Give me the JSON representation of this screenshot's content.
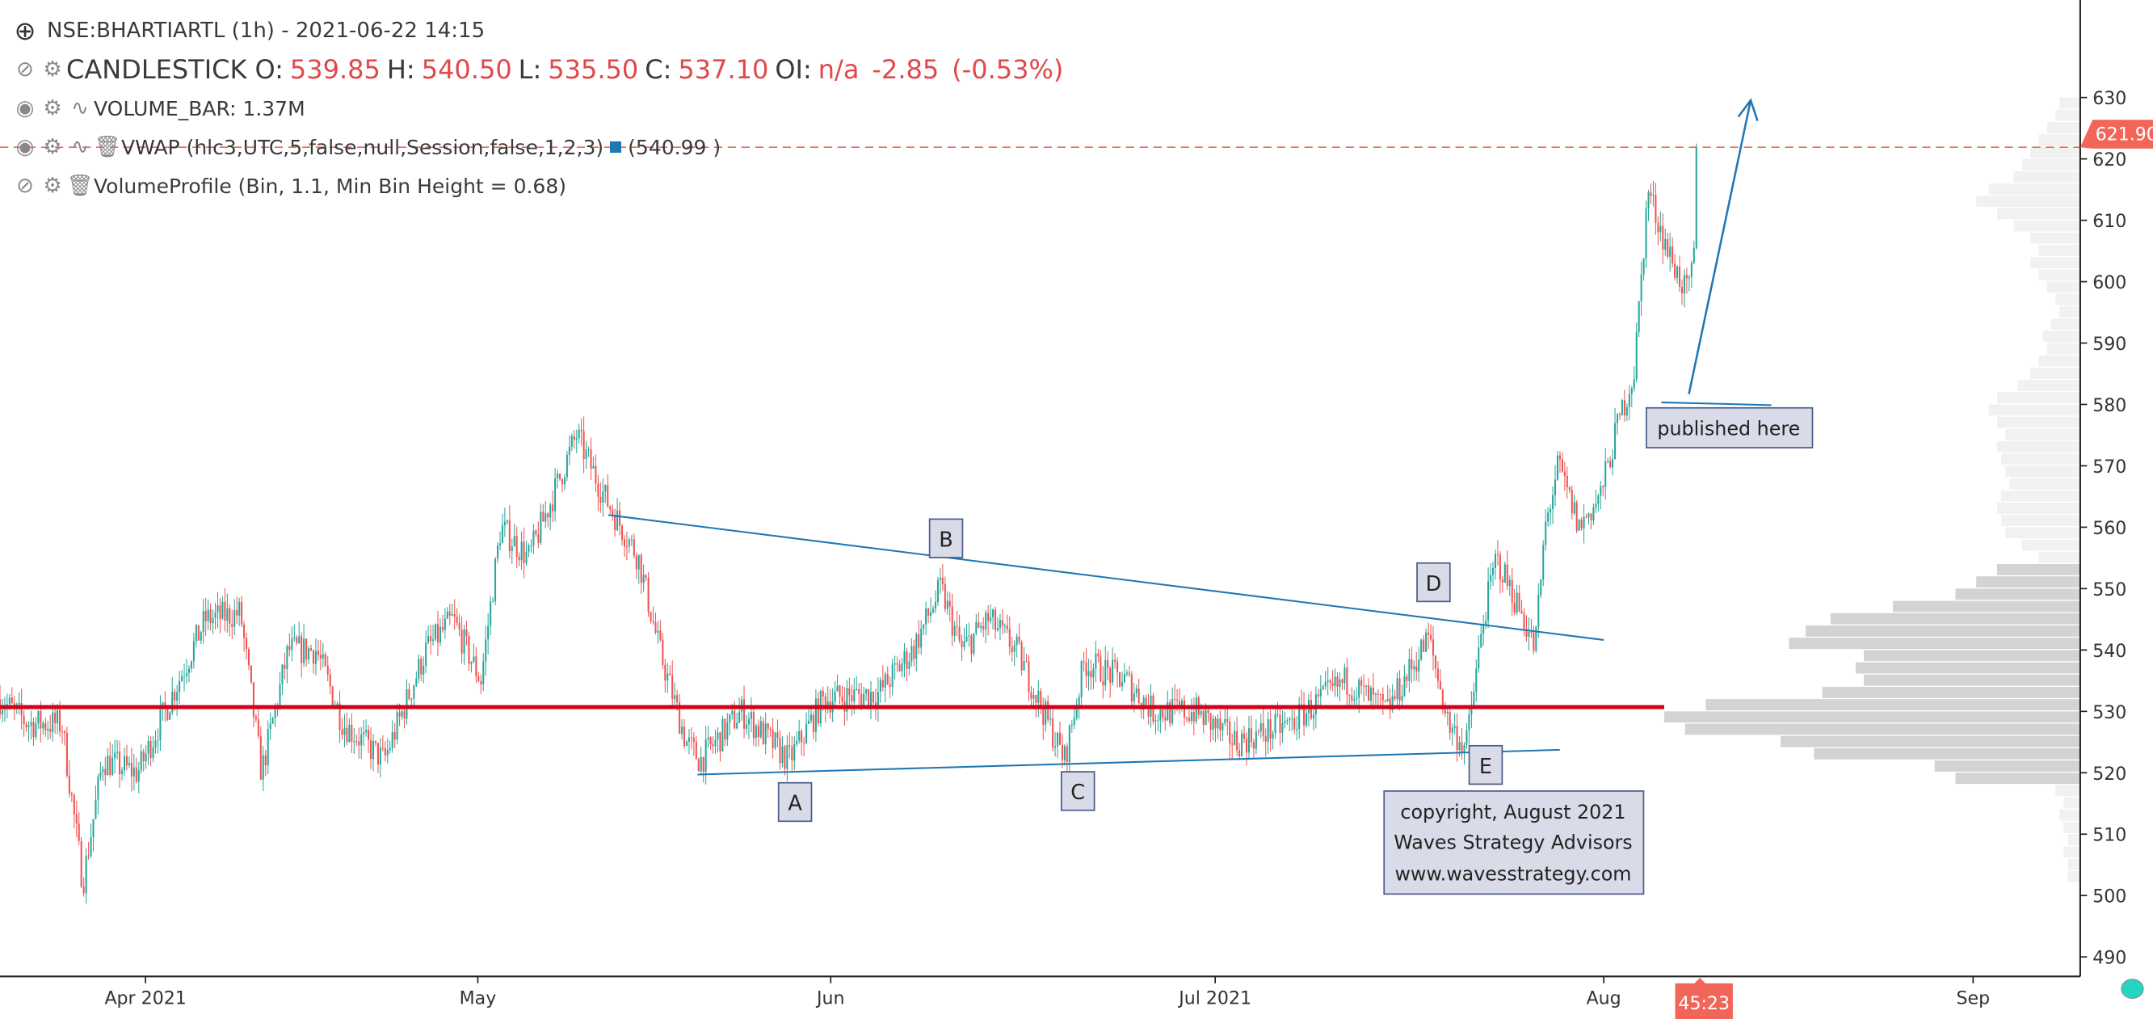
{
  "header": {
    "title": "NSE:BHARTIARTL (1h) - 2021-06-22 14:15",
    "candle_label": "CANDLESTICK",
    "o_label": "O:",
    "o": "539.85",
    "h_label": "H:",
    "h": "540.50",
    "l_label": "L:",
    "l": "535.50",
    "c_label": "C:",
    "c": "537.10",
    "oi_label": "OI:",
    "oi": "n/a",
    "change": "-2.85",
    "change_pct": "(-0.53%)",
    "volume": "VOLUME_BAR: 1.37M",
    "vwap": "VWAP (hlc3,UTC,5,false,null,Session,false,1,2,3)",
    "vwap_value": "(540.99 )",
    "volume_profile": "VolumeProfile (Bin, 1.1, Min Bin Height = 0.68)"
  },
  "colors": {
    "up": "#26a69a",
    "down": "#ef5350",
    "support": "#d0021b",
    "trend": "#1f77b4",
    "last": "#f2665a",
    "profile": "#d3d3d3",
    "profile_light": "#f1f1f1"
  },
  "chart_data": {
    "type": "candlestick",
    "symbol": "NSE:BHARTIARTL",
    "interval": "1h",
    "y_ticks": [
      "490",
      "500",
      "510",
      "520",
      "530",
      "540",
      "550",
      "560",
      "570",
      "580",
      "590",
      "600",
      "610",
      "620",
      "630"
    ],
    "ylim": [
      487,
      636
    ],
    "x_ticks": [
      "Apr 2021",
      "May",
      "Jun",
      "Jul 2021",
      "Aug",
      "Sep"
    ],
    "x_unit": "days since 2021-03-19",
    "price_path": [
      [
        0,
        532
      ],
      [
        2.4,
        528
      ],
      [
        5.3,
        528
      ],
      [
        7.1,
        502
      ],
      [
        8.8,
        522
      ],
      [
        11.8,
        520
      ],
      [
        15.3,
        535
      ],
      [
        17.6,
        545
      ],
      [
        20.6,
        546
      ],
      [
        22.4,
        520
      ],
      [
        24.7,
        540
      ],
      [
        27.1,
        540
      ],
      [
        29.4,
        528
      ],
      [
        32.9,
        522
      ],
      [
        36.5,
        540
      ],
      [
        38.8,
        545
      ],
      [
        41.2,
        535
      ],
      [
        42.9,
        560
      ],
      [
        45.3,
        555
      ],
      [
        49.4,
        575
      ],
      [
        51.8,
        565
      ],
      [
        54.7,
        555
      ],
      [
        56.5,
        540
      ],
      [
        58.8,
        525
      ],
      [
        60,
        522
      ],
      [
        63.5,
        530
      ],
      [
        67.6,
        522
      ],
      [
        70.6,
        532
      ],
      [
        75.3,
        533
      ],
      [
        78.2,
        540
      ],
      [
        80.6,
        550
      ],
      [
        82.4,
        540
      ],
      [
        84.7,
        545
      ],
      [
        87.1,
        540
      ],
      [
        89.4,
        530
      ],
      [
        91.2,
        522
      ],
      [
        92.9,
        538
      ],
      [
        96.5,
        535
      ],
      [
        98.8,
        530
      ],
      [
        102.4,
        530
      ],
      [
        105.9,
        525
      ],
      [
        110.6,
        528
      ],
      [
        115.3,
        535
      ],
      [
        118.8,
        530
      ],
      [
        121.2,
        538
      ],
      [
        122.4,
        542
      ],
      [
        124.1,
        528
      ],
      [
        125.6,
        524
      ],
      [
        127.1,
        545
      ],
      [
        128.2,
        555
      ],
      [
        130.6,
        545
      ],
      [
        131.5,
        540
      ],
      [
        132.4,
        560
      ],
      [
        133.5,
        570
      ],
      [
        135.3,
        560
      ],
      [
        137.1,
        565
      ],
      [
        138.8,
        578
      ],
      [
        140,
        585
      ],
      [
        141.2,
        615
      ],
      [
        142.9,
        605
      ],
      [
        144.5,
        598
      ],
      [
        145.1,
        602
      ],
      [
        145.5,
        621.9
      ]
    ],
    "last_price": "621.90",
    "countdown": "45:23",
    "support_level": 530.7,
    "trendlines": [
      {
        "name": "upper",
        "from": [
          50.6,
          559
        ],
        "to": [
          137.4,
          539
        ]
      },
      {
        "name": "lower",
        "from": [
          59.8,
          519
        ],
        "to": [
          133.6,
          523
        ]
      }
    ],
    "volume_profile": [
      [
        629,
        0.05
      ],
      [
        627,
        0.06
      ],
      [
        625,
        0.08
      ],
      [
        623,
        0.1
      ],
      [
        621,
        0.12
      ],
      [
        619,
        0.14
      ],
      [
        617,
        0.16
      ],
      [
        615,
        0.22
      ],
      [
        613,
        0.25
      ],
      [
        611,
        0.2
      ],
      [
        609,
        0.16
      ],
      [
        607,
        0.12
      ],
      [
        605,
        0.1
      ],
      [
        603,
        0.12
      ],
      [
        601,
        0.1
      ],
      [
        599,
        0.08
      ],
      [
        597,
        0.06
      ],
      [
        595,
        0.05
      ],
      [
        593,
        0.07
      ],
      [
        591,
        0.09
      ],
      [
        589,
        0.08
      ],
      [
        587,
        0.1
      ],
      [
        585,
        0.12
      ],
      [
        583,
        0.15
      ],
      [
        581,
        0.2
      ],
      [
        579,
        0.22
      ],
      [
        577,
        0.2
      ],
      [
        575,
        0.18
      ],
      [
        573,
        0.2
      ],
      [
        571,
        0.19
      ],
      [
        569,
        0.18
      ],
      [
        567,
        0.17
      ],
      [
        565,
        0.19
      ],
      [
        563,
        0.2
      ],
      [
        561,
        0.19
      ],
      [
        559,
        0.18
      ],
      [
        557,
        0.14
      ],
      [
        555,
        0.1
      ],
      [
        553,
        0.2
      ],
      [
        551,
        0.25
      ],
      [
        549,
        0.3
      ],
      [
        547,
        0.45
      ],
      [
        545,
        0.6
      ],
      [
        543,
        0.66
      ],
      [
        541,
        0.7
      ],
      [
        539,
        0.52
      ],
      [
        537,
        0.54
      ],
      [
        535,
        0.52
      ],
      [
        533,
        0.62
      ],
      [
        531,
        0.9
      ],
      [
        529,
        1.0
      ],
      [
        527,
        0.95
      ],
      [
        525,
        0.72
      ],
      [
        523,
        0.64
      ],
      [
        521,
        0.35
      ],
      [
        519,
        0.3
      ],
      [
        517,
        0.06
      ],
      [
        515,
        0.04
      ],
      [
        513,
        0.05
      ],
      [
        511,
        0.04
      ],
      [
        509,
        0.03
      ],
      [
        507,
        0.04
      ],
      [
        505,
        0.03
      ],
      [
        503,
        0.03
      ]
    ],
    "annotations": {
      "A": "A",
      "B": "B",
      "C": "C",
      "D": "D",
      "E": "E",
      "published": "published here",
      "copyright_1": "copyright, August 2021",
      "copyright_2": "Waves Strategy Advisors",
      "copyright_3": "www.wavesstrategy.com"
    }
  }
}
